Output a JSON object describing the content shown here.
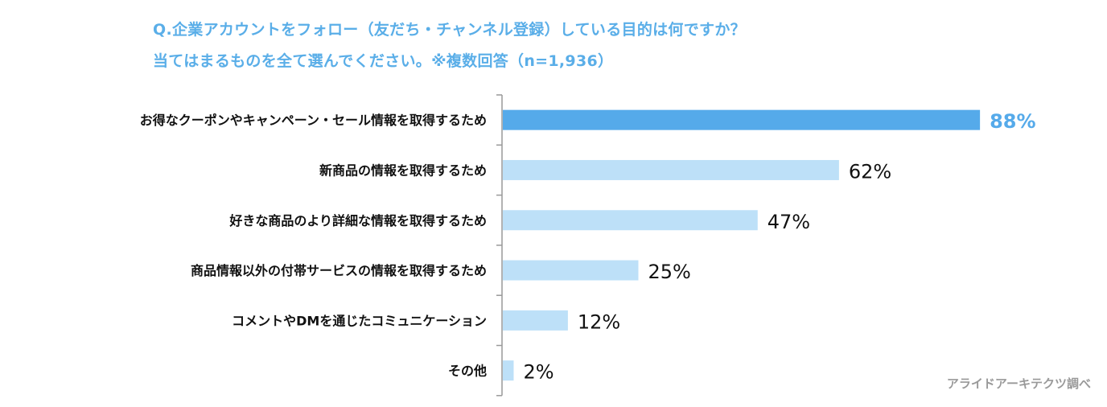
{
  "chart_data": {
    "type": "bar",
    "orientation": "horizontal",
    "title_line1": "Q.企業アカウントをフォロー（友だち・チャンネル登録）している目的は何ですか？",
    "title_line2": "当てはまるものを全て選んでください。※複数回答（n=1,936）",
    "categories": [
      "お得なクーポンやキャンペーン・セール情報を取得するため",
      "新商品の情報を取得するため",
      "好きな商品のより詳細な情報を取得するため",
      "商品情報以外の付帯サービスの情報を取得するため",
      "コメントやDMを通じたコミュニケーション",
      "その他"
    ],
    "values": [
      88,
      62,
      47,
      25,
      12,
      2
    ],
    "value_labels": [
      "88%",
      "62%",
      "47%",
      "25%",
      "12%",
      "2%"
    ],
    "unit": "%",
    "xlim": [
      0,
      100
    ],
    "highlight_index": 0,
    "colors": {
      "highlight": "#55aaea",
      "normal": "#bde0f8",
      "title": "#5aaee8"
    },
    "source": "アライドアーキテクツ調べ"
  }
}
